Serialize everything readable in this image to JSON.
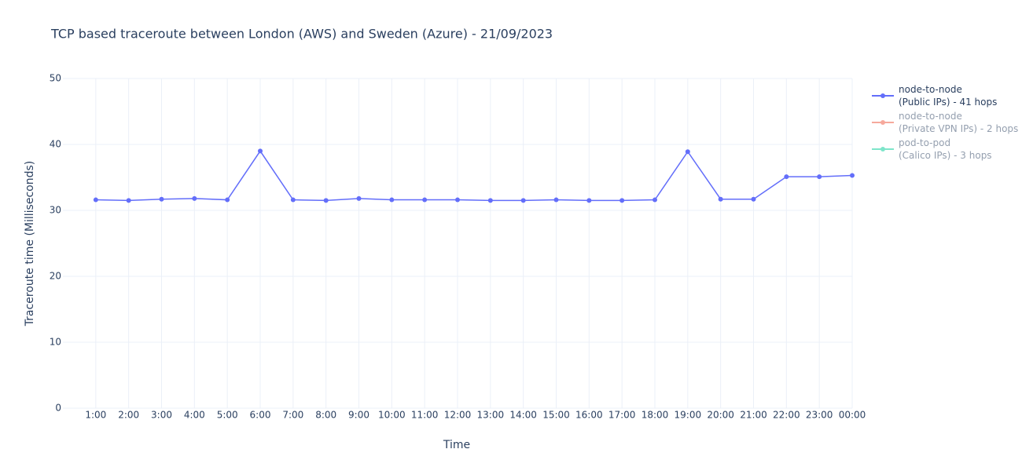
{
  "chart_data": {
    "type": "line",
    "title": "TCP based traceroute between London (AWS) and Sweden (Azure)   -   21/09/2023",
    "x_label": "Time",
    "y_label": "Traceroute time (Milliseconds)",
    "categories": [
      "1:00",
      "2:00",
      "3:00",
      "4:00",
      "5:00",
      "6:00",
      "7:00",
      "8:00",
      "9:00",
      "10:00",
      "11:00",
      "12:00",
      "13:00",
      "14:00",
      "15:00",
      "16:00",
      "17:00",
      "18:00",
      "19:00",
      "20:00",
      "21:00",
      "22:00",
      "23:00",
      "00:00"
    ],
    "series": [
      {
        "name": "node-to-node\n(Public IPs) - 41 hops",
        "color": "#636efa",
        "visible": true,
        "values": [
          31.6,
          31.5,
          31.7,
          31.8,
          31.6,
          39.0,
          31.6,
          31.5,
          31.8,
          31.6,
          31.6,
          31.6,
          31.5,
          31.5,
          31.6,
          31.5,
          31.5,
          31.6,
          38.9,
          31.7,
          31.7,
          35.1,
          35.1,
          35.3
        ]
      },
      {
        "name": "node-to-node\n(Private VPN IPs) - 2 hops",
        "color": "#EF553B",
        "visible": false
      },
      {
        "name": "pod-to-pod\n(Calico IPs) - 3 hops",
        "color": "#00cc96",
        "visible": false
      }
    ],
    "ylim": [
      0,
      50
    ],
    "yticks": [
      0,
      10,
      20,
      30,
      40,
      50
    ],
    "grid": true,
    "legend": "right"
  }
}
